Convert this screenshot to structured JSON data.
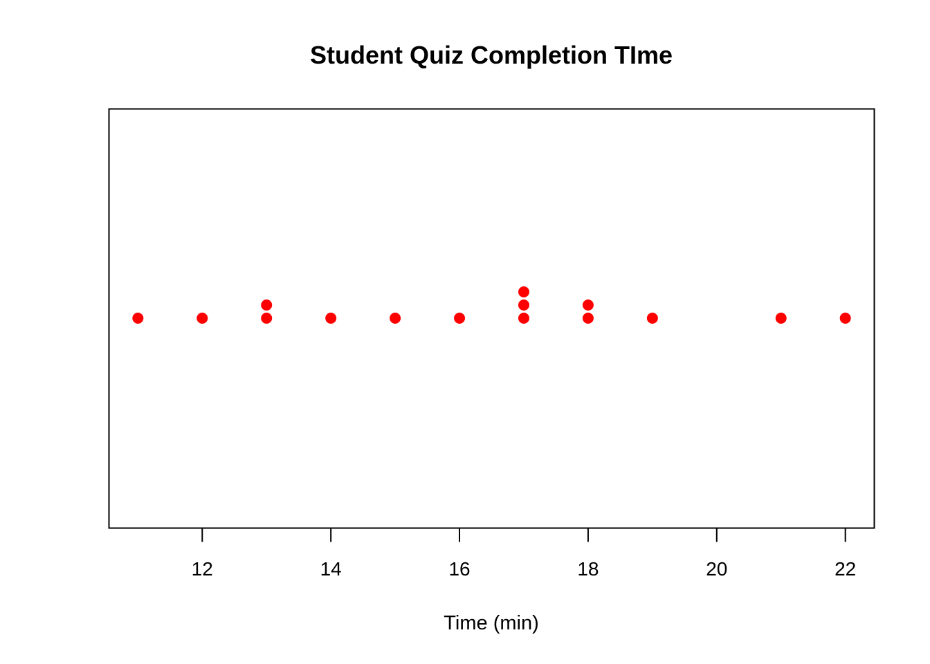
{
  "chart_data": {
    "type": "scatter",
    "subtype": "stacked-dot-plot",
    "title": "Student Quiz Completion TIme",
    "xlabel": "Time (min)",
    "ylabel": "",
    "xlim": [
      10.55,
      22.45
    ],
    "x_ticks": [
      12,
      14,
      16,
      18,
      20,
      22
    ],
    "x_tick_labels": [
      "12",
      "14",
      "16",
      "18",
      "20",
      "22"
    ],
    "grid": false,
    "marker_color": "#ff0000",
    "values": [
      11,
      12,
      13,
      13,
      14,
      15,
      16,
      17,
      17,
      17,
      18,
      18,
      19,
      21,
      22
    ]
  }
}
